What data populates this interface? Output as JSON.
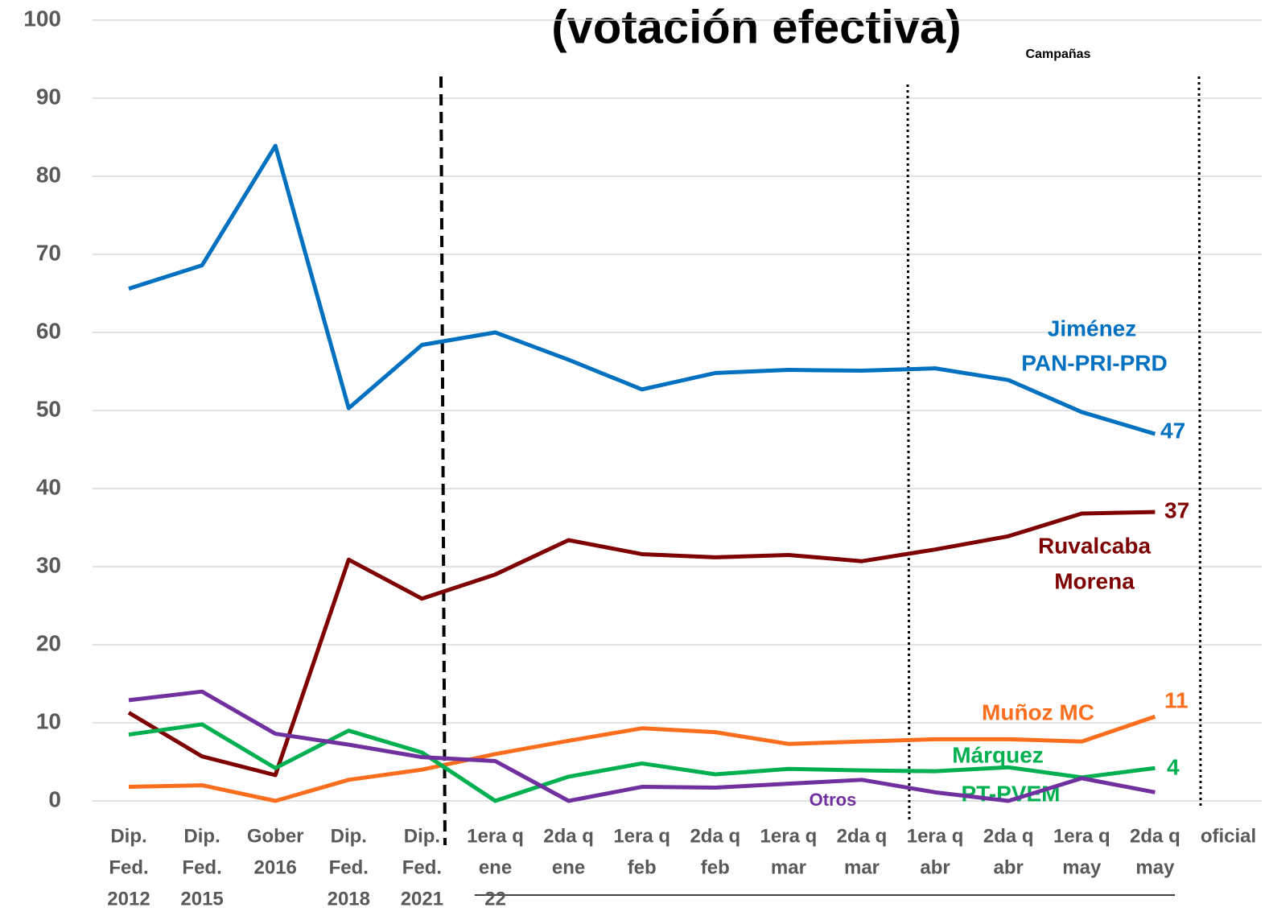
{
  "chart_data": {
    "type": "line",
    "title": "(votación efectiva)",
    "subtitle": "Campañas",
    "categories": [
      [
        "Dip.",
        "Fed.",
        "2012"
      ],
      [
        "Dip.",
        "Fed.",
        "2015"
      ],
      [
        "Gober",
        "2016"
      ],
      [
        "Dip.",
        "Fed.",
        "2018"
      ],
      [
        "Dip.",
        "Fed.",
        "2021"
      ],
      [
        "1era q",
        "ene",
        "22"
      ],
      [
        "2da q",
        "ene"
      ],
      [
        "1era q",
        "feb"
      ],
      [
        "2da q",
        "feb"
      ],
      [
        "1era q",
        "mar"
      ],
      [
        "2da q",
        "mar"
      ],
      [
        "1era q",
        "abr"
      ],
      [
        "2da q",
        "abr"
      ],
      [
        "1era q",
        "may"
      ],
      [
        "2da q",
        "may"
      ],
      [
        "oficial"
      ]
    ],
    "ylim": [
      0,
      100
    ],
    "yticks": [
      0,
      10,
      20,
      30,
      40,
      50,
      60,
      70,
      80,
      90,
      100
    ],
    "grid": true,
    "series": [
      {
        "name": [
          "Jiménez",
          "PAN-PRI-PRD"
        ],
        "color": "#0070c0",
        "values": [
          65.6,
          68.6,
          83.9,
          50.3,
          58.4,
          60,
          56.5,
          52.7,
          54.8,
          55.2,
          55.1,
          55.4,
          53.9,
          49.8,
          47,
          null
        ],
        "value_labels": [
          null,
          null,
          null,
          null,
          null,
          null,
          null,
          null,
          null,
          null,
          null,
          null,
          null,
          null,
          "47",
          null
        ]
      },
      {
        "name": [
          "Ruvalcaba",
          "Morena"
        ],
        "color": "#7f0000",
        "values": [
          11.3,
          5.7,
          3.3,
          30.9,
          25.9,
          29,
          33.4,
          31.6,
          31.2,
          31.5,
          30.7,
          32.2,
          33.9,
          36.8,
          37,
          null
        ],
        "value_labels": [
          null,
          null,
          null,
          null,
          null,
          null,
          null,
          null,
          null,
          null,
          null,
          null,
          null,
          null,
          "37",
          null
        ]
      },
      {
        "name": [
          "Muñoz MC"
        ],
        "color": "#fa6e1e",
        "values": [
          1.8,
          2,
          0,
          2.7,
          4,
          6,
          7.7,
          9.3,
          8.8,
          7.3,
          7.6,
          7.9,
          7.9,
          7.6,
          10.8,
          null
        ],
        "value_labels": [
          null,
          null,
          null,
          null,
          null,
          null,
          null,
          null,
          null,
          null,
          null,
          null,
          null,
          null,
          "11",
          null
        ]
      },
      {
        "name": [
          "Márquez",
          "PT-PVEM"
        ],
        "color": "#00b050",
        "values": [
          8.5,
          9.8,
          4.2,
          9,
          6.2,
          0,
          3.1,
          4.8,
          3.4,
          4.1,
          3.9,
          3.8,
          4.3,
          3,
          4.2,
          null
        ],
        "value_labels": [
          null,
          null,
          null,
          null,
          null,
          null,
          null,
          null,
          null,
          null,
          null,
          null,
          null,
          null,
          "4",
          null
        ]
      },
      {
        "name": [
          "Otros"
        ],
        "color": "#7030a0",
        "values": [
          12.9,
          14,
          8.6,
          7.2,
          5.6,
          5.1,
          0,
          1.8,
          1.7,
          2.2,
          2.7,
          1.1,
          0,
          2.9,
          1.1,
          null
        ]
      }
    ]
  }
}
